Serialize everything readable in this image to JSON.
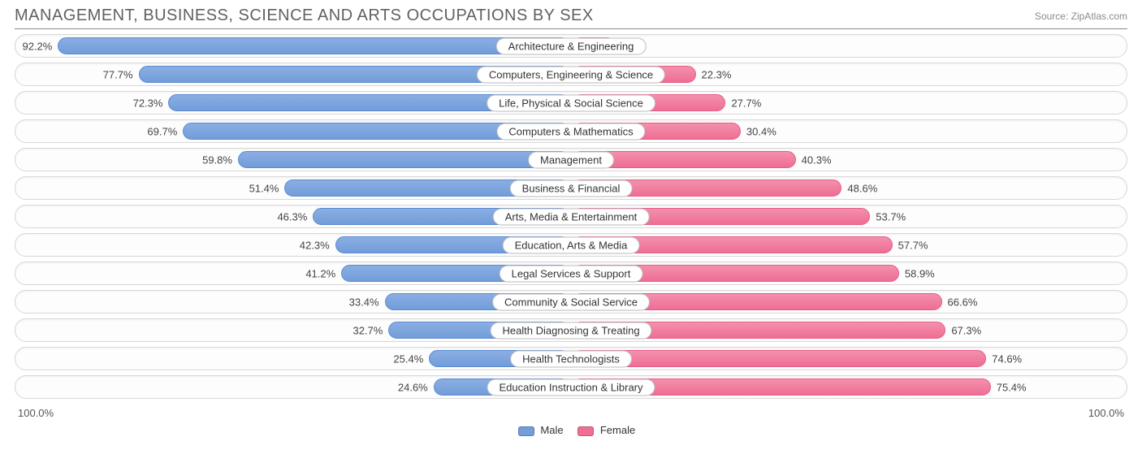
{
  "title": "MANAGEMENT, BUSINESS, SCIENCE AND ARTS OCCUPATIONS BY SEX",
  "source_label": "Source:",
  "source_name": "ZipAtlas.com",
  "type": "diverging-bar",
  "colors": {
    "male_fill": "#729dd9",
    "male_border": "#5a8bd0",
    "female_fill": "#ee6e94",
    "female_border": "#e85c86",
    "row_bg": "#fdfdfd",
    "row_border": "#d8d8d8",
    "text": "#444",
    "title_color": "#64605d"
  },
  "axis": {
    "left": "100.0%",
    "right": "100.0%"
  },
  "legend": {
    "male": "Male",
    "female": "Female"
  },
  "rows": [
    {
      "label": "Architecture & Engineering",
      "male": 92.2,
      "female": 7.9
    },
    {
      "label": "Computers, Engineering & Science",
      "male": 77.7,
      "female": 22.3
    },
    {
      "label": "Life, Physical & Social Science",
      "male": 72.3,
      "female": 27.7
    },
    {
      "label": "Computers & Mathematics",
      "male": 69.7,
      "female": 30.4
    },
    {
      "label": "Management",
      "male": 59.8,
      "female": 40.3
    },
    {
      "label": "Business & Financial",
      "male": 51.4,
      "female": 48.6
    },
    {
      "label": "Arts, Media & Entertainment",
      "male": 46.3,
      "female": 53.7
    },
    {
      "label": "Education, Arts & Media",
      "male": 42.3,
      "female": 57.7
    },
    {
      "label": "Legal Services & Support",
      "male": 41.2,
      "female": 58.9
    },
    {
      "label": "Community & Social Service",
      "male": 33.4,
      "female": 66.6
    },
    {
      "label": "Health Diagnosing & Treating",
      "male": 32.7,
      "female": 67.3
    },
    {
      "label": "Health Technologists",
      "male": 25.4,
      "female": 74.6
    },
    {
      "label": "Education Instruction & Library",
      "male": 24.6,
      "female": 75.4
    }
  ]
}
